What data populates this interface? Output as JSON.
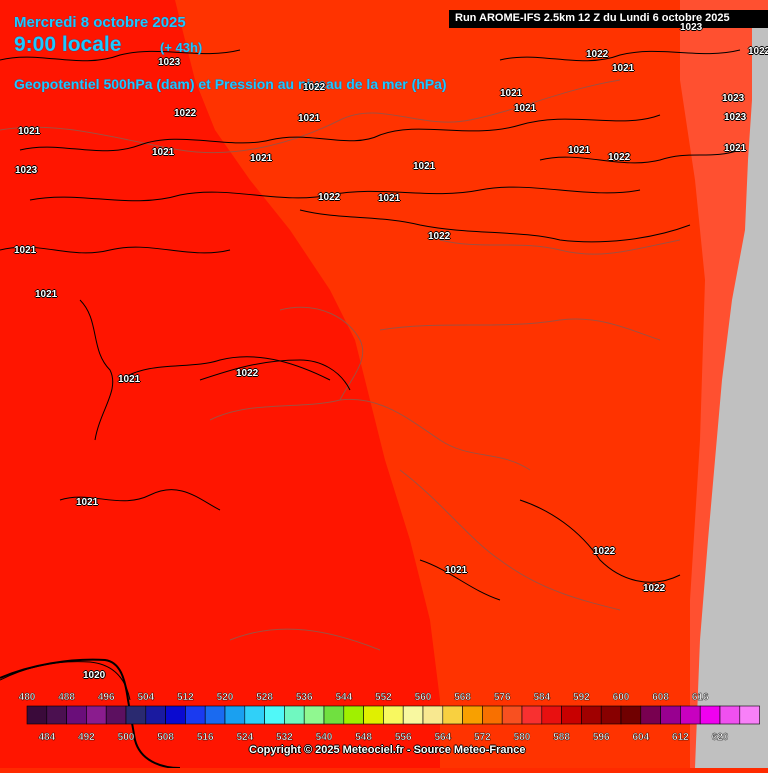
{
  "header": {
    "date": "Mercredi 8 octobre 2025",
    "time": "9:00 locale",
    "lead": "(+ 43h)",
    "product": "Geopotentiel 500hPa (dam) et Pression au niveau de la mer (hPa)",
    "run": "Run AROME-IFS 2.5km 12 Z du Lundi 6 octobre 2025"
  },
  "isobar_labels": [
    "1023",
    "1022",
    "1021",
    "1021",
    "1023",
    "1022",
    "1021",
    "1021",
    "1021",
    "1021",
    "1023",
    "1021",
    "1022",
    "1021",
    "1022",
    "1021",
    "1022",
    "1021",
    "1022",
    "1023",
    "1021",
    "1022",
    "1021",
    "1021",
    "1023",
    "1022",
    "1021",
    "1022",
    "1021",
    "1022",
    "1021",
    "1020"
  ],
  "scale": {
    "top_labels": [
      "480",
      "488",
      "496",
      "504",
      "512",
      "520",
      "528",
      "536",
      "544",
      "552",
      "560",
      "568",
      "576",
      "584",
      "592",
      "600",
      "608",
      "616"
    ],
    "bottom_labels": [
      "484",
      "492",
      "500",
      "508",
      "516",
      "524",
      "532",
      "540",
      "548",
      "556",
      "564",
      "572",
      "580",
      "588",
      "596",
      "604",
      "612",
      "620"
    ],
    "colors": [
      "#3a0a3a",
      "#4b1050",
      "#6a0e7a",
      "#8a1c8e",
      "#5c1060",
      "#2a2a70",
      "#1a1aa0",
      "#0a0ad0",
      "#1a3af0",
      "#1a6af0",
      "#1aa0f0",
      "#30d0f8",
      "#50f8f8",
      "#70f8c0",
      "#90f890",
      "#70e040",
      "#a0f000",
      "#e0f000",
      "#f8f860",
      "#f8f8a0",
      "#f8e890",
      "#f8d040",
      "#f8a000",
      "#f87000",
      "#f85020",
      "#f83030",
      "#e81010",
      "#c80000",
      "#a00000",
      "#880000",
      "#700000",
      "#780050",
      "#980090",
      "#c800c0",
      "#f000f0",
      "#f050f0",
      "#f880f8"
    ]
  },
  "copyright": "Copyright © 2025 Meteociel.fr - Source Meteo-France"
}
